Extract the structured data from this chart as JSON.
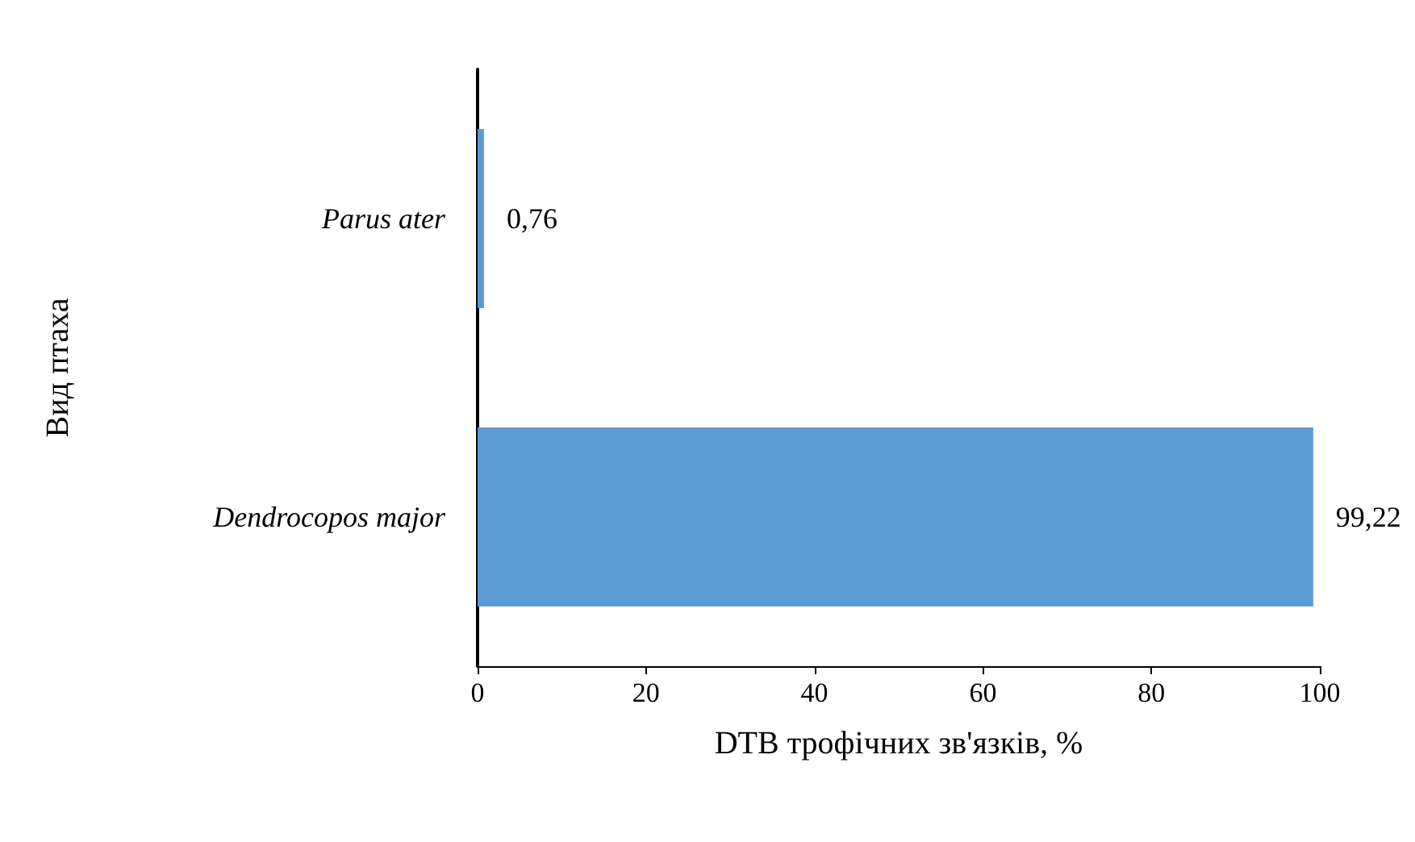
{
  "chart_data": {
    "type": "bar",
    "orientation": "horizontal",
    "xlabel": "DTB трофічних зв'язків, %",
    "ylabel": "Вид птаха",
    "categories": [
      "Parus ater",
      "Dendrocopos major"
    ],
    "values": [
      0.76,
      99.22
    ],
    "value_labels": [
      "0,76",
      "99,22"
    ],
    "color": "#5b9bd5",
    "xlim": [
      0,
      100
    ],
    "xticks": [
      0,
      20,
      40,
      60,
      80,
      100
    ],
    "grid": false
  }
}
